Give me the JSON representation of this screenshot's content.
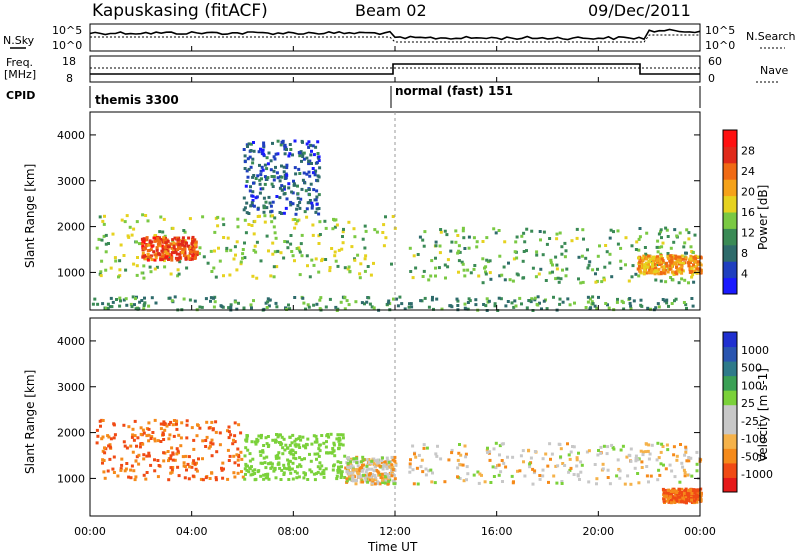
{
  "header": {
    "station": "Kapuskasing (fitACF)",
    "beam": "Beam 02",
    "date": "09/Dec/2011"
  },
  "nsky_panel": {
    "left_label": "N.Sky",
    "left_ticks": [
      "10^5",
      "10^0"
    ],
    "right_ticks": [
      "10^5",
      "10^0"
    ],
    "right_label": "N.Search"
  },
  "freq_panel": {
    "left_label_line1": "Freq.",
    "left_label_line2": "[MHz]",
    "left_ticks": [
      "18",
      "8"
    ],
    "right_ticks": [
      "60",
      "0"
    ],
    "right_label": "Nave"
  },
  "cpid_panel": {
    "label": "CPID",
    "modes": [
      {
        "name": "themis 3300",
        "start_hour": 0
      },
      {
        "name": "normal (fast) 151",
        "start_hour": 12
      }
    ]
  },
  "colors": {
    "power_scale": [
      "#1a1aff",
      "#1f3fbf",
      "#2e6b6b",
      "#3a8a55",
      "#7ac943",
      "#e6d21f",
      "#f5a21a",
      "#f06a14",
      "#e02a1a",
      "#ff1010"
    ],
    "velocity_scale": [
      "#e61919",
      "#f04a14",
      "#f58a1a",
      "#f5b24a",
      "#c8c8c8",
      "#c8c8c8",
      "#7bd13a",
      "#3aa055",
      "#2e7a8a",
      "#2a55b0",
      "#2030d0"
    ]
  },
  "chart_data": [
    {
      "type": "heatmap",
      "title": "Power",
      "xlabel": "Time UT",
      "ylabel": "Slant Range [km]",
      "xlim": [
        0,
        24
      ],
      "ylim": [
        180,
        4500
      ],
      "x_ticks": [
        "00:00",
        "04:00",
        "08:00",
        "12:00",
        "16:00",
        "20:00",
        "00:00"
      ],
      "y_ticks": [
        "1000",
        "2000",
        "3000",
        "4000"
      ],
      "colorbar": {
        "label": "Power [dB]",
        "ticks": [
          "4",
          "8",
          "12",
          "16",
          "20",
          "24",
          "28"
        ],
        "range": [
          0,
          30
        ]
      },
      "scatter_regions": [
        {
          "t_start": 0.2,
          "t_end": 12.0,
          "range_start": 900,
          "range_end": 2300,
          "power": 14
        },
        {
          "t_start": 2.0,
          "t_end": 4.2,
          "range_start": 1300,
          "range_end": 1800,
          "power": 24
        },
        {
          "t_start": 6.0,
          "t_end": 9.0,
          "range_start": 2300,
          "range_end": 3900,
          "power": 6
        },
        {
          "t_start": 12.5,
          "t_end": 24.0,
          "range_start": 800,
          "range_end": 2000,
          "power": 12
        },
        {
          "t_start": 21.5,
          "t_end": 24.0,
          "range_start": 1000,
          "range_end": 1400,
          "power": 20
        },
        {
          "t_start": 0.0,
          "t_end": 24.0,
          "range_start": 200,
          "range_end": 500,
          "power": 10
        }
      ]
    },
    {
      "type": "heatmap",
      "title": "Velocity",
      "xlabel": "Time UT",
      "ylabel": "Slant Range [km]",
      "xlim": [
        0,
        24
      ],
      "ylim": [
        180,
        4500
      ],
      "x_ticks": [
        "00:00",
        "04:00",
        "08:00",
        "12:00",
        "16:00",
        "20:00",
        "00:00"
      ],
      "y_ticks": [
        "1000",
        "2000",
        "3000",
        "4000"
      ],
      "colorbar": {
        "label": "Velocity [m s-1]",
        "ticks": [
          "-1000",
          "-500",
          "-100",
          "-25",
          "25",
          "100",
          "500",
          "1000"
        ]
      },
      "scatter_regions": [
        {
          "t_start": 0.2,
          "t_end": 6.0,
          "range_start": 1000,
          "range_end": 2300,
          "velocity": -300
        },
        {
          "t_start": 6.0,
          "t_end": 10.0,
          "range_start": 1000,
          "range_end": 2000,
          "velocity": 200
        },
        {
          "t_start": 10.0,
          "t_end": 12.0,
          "range_start": 900,
          "range_end": 1500,
          "velocity": 0
        },
        {
          "t_start": 12.5,
          "t_end": 24.0,
          "range_start": 900,
          "range_end": 1800,
          "velocity": 0
        },
        {
          "t_start": 22.5,
          "t_end": 24.0,
          "range_start": 500,
          "range_end": 800,
          "velocity": -300
        }
      ]
    }
  ]
}
